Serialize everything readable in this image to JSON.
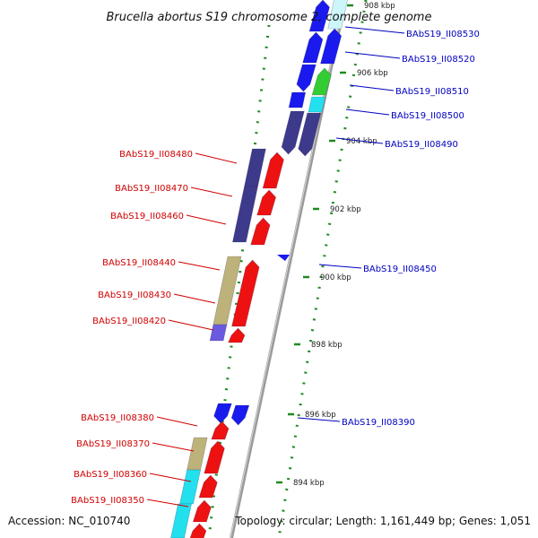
{
  "title": "Brucella abortus S19 chromosome 2, complete genome",
  "footer": {
    "accession": "Accession: NC_010740",
    "topology": "Topology: circular; Length: 1,161,449 bp; Genes: 1,051"
  },
  "colors": {
    "backbone": "#9a9a9a",
    "ruler": "#208a20",
    "plus_strand_label": "#d00000",
    "minus_strand_label": "#0000c0",
    "red": "#ee1111",
    "blue": "#1a1aee",
    "navy": "#3d3a8c",
    "tan": "#bdb27a",
    "cyan": "#22e0ee",
    "green": "#33cc33",
    "periwinkle": "#6a5ae0",
    "lightcyan": "#cdf6fa"
  },
  "ticks": [
    {
      "label": "908 kbp"
    },
    {
      "label": "906 kbp"
    },
    {
      "label": "904 kbp"
    },
    {
      "label": "902 kbp"
    },
    {
      "label": "900 kbp"
    },
    {
      "label": "898 kbp"
    },
    {
      "label": "896 kbp"
    },
    {
      "label": "894 kbp"
    }
  ],
  "genes_right": [
    {
      "name": "BAbS19_II08530"
    },
    {
      "name": "BAbS19_II08520"
    },
    {
      "name": "BAbS19_II08510"
    },
    {
      "name": "BAbS19_II08500"
    },
    {
      "name": "BAbS19_II08490"
    },
    {
      "name": "BAbS19_II08450"
    },
    {
      "name": "BAbS19_II08390"
    }
  ],
  "genes_left": [
    {
      "name": "BAbS19_II08480"
    },
    {
      "name": "BAbS19_II08470"
    },
    {
      "name": "BAbS19_II08460"
    },
    {
      "name": "BAbS19_II08440"
    },
    {
      "name": "BAbS19_II08430"
    },
    {
      "name": "BAbS19_II08420"
    },
    {
      "name": "BAbS19_II08380"
    },
    {
      "name": "BAbS19_II08370"
    },
    {
      "name": "BAbS19_II08360"
    },
    {
      "name": "BAbS19_II08350"
    }
  ]
}
